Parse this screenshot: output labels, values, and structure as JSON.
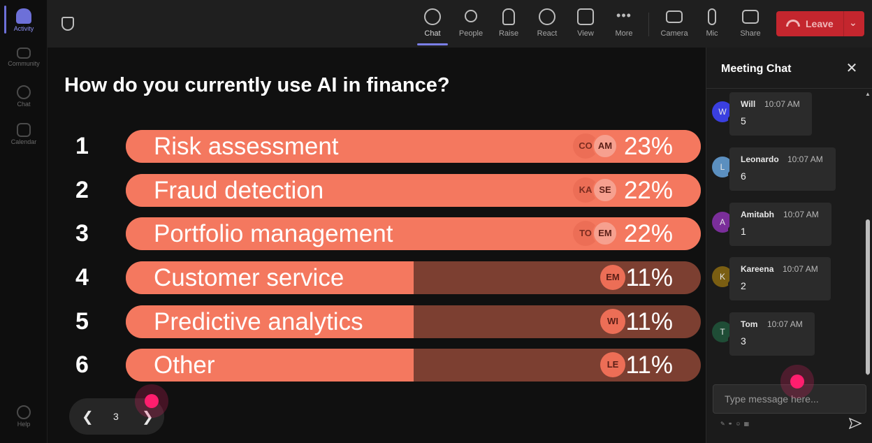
{
  "rail": {
    "items": [
      {
        "label": "Activity"
      },
      {
        "label": "Community"
      },
      {
        "label": "Chat"
      },
      {
        "label": "Calendar"
      },
      {
        "label": "Help"
      }
    ]
  },
  "toolbar": {
    "buttons": [
      {
        "label": "Chat",
        "icon": "chat-icon"
      },
      {
        "label": "People",
        "icon": "people-icon"
      },
      {
        "label": "Raise",
        "icon": "raise-hand-icon"
      },
      {
        "label": "React",
        "icon": "react-icon"
      },
      {
        "label": "View",
        "icon": "view-icon"
      },
      {
        "label": "More",
        "icon": "more-icon"
      },
      {
        "label": "Camera",
        "icon": "camera-off-icon"
      },
      {
        "label": "Mic",
        "icon": "mic-icon"
      },
      {
        "label": "Share",
        "icon": "share-icon"
      }
    ],
    "leave_label": "Leave",
    "leave_color": "#c4262e"
  },
  "poll": {
    "question": "How do you currently use AI in finance?",
    "options": [
      {
        "rank": "1",
        "label": "Risk assessment",
        "pct": "23%",
        "fraction": 1.0,
        "avatars": [
          "CO",
          "AM"
        ]
      },
      {
        "rank": "2",
        "label": "Fraud detection",
        "pct": "22%",
        "fraction": 1.0,
        "avatars": [
          "KA",
          "SE"
        ]
      },
      {
        "rank": "3",
        "label": "Portfolio management",
        "pct": "22%",
        "fraction": 1.0,
        "avatars": [
          "TO",
          "EM"
        ]
      },
      {
        "rank": "4",
        "label": "Customer service",
        "pct": "11%",
        "fraction": 0.5,
        "avatars": [
          "EM"
        ]
      },
      {
        "rank": "5",
        "label": "Predictive analytics",
        "pct": "11%",
        "fraction": 0.5,
        "avatars": [
          "WI"
        ]
      },
      {
        "rank": "6",
        "label": "Other",
        "pct": "11%",
        "fraction": 0.5,
        "avatars": [
          "LE"
        ]
      }
    ],
    "bar_color": "#f4785f",
    "bar_track_color": "#7c3f31",
    "page": "3"
  },
  "chat": {
    "title": "Meeting Chat",
    "messages": [
      {
        "initial": "W",
        "name": "Will",
        "time": "10:07 AM",
        "text": "5",
        "color": "#3a3fe0"
      },
      {
        "initial": "L",
        "name": "Leonardo",
        "time": "10:07 AM",
        "text": "6",
        "color": "#5b8fbf"
      },
      {
        "initial": "A",
        "name": "Amitabh",
        "time": "10:07 AM",
        "text": "1",
        "color": "#7a2e9a"
      },
      {
        "initial": "K",
        "name": "Kareena",
        "time": "10:07 AM",
        "text": "2",
        "color": "#7a5e12"
      },
      {
        "initial": "T",
        "name": "Tom",
        "time": "10:07 AM",
        "text": "3",
        "color": "#1f4d36"
      }
    ],
    "input_placeholder": "Type message here..."
  }
}
